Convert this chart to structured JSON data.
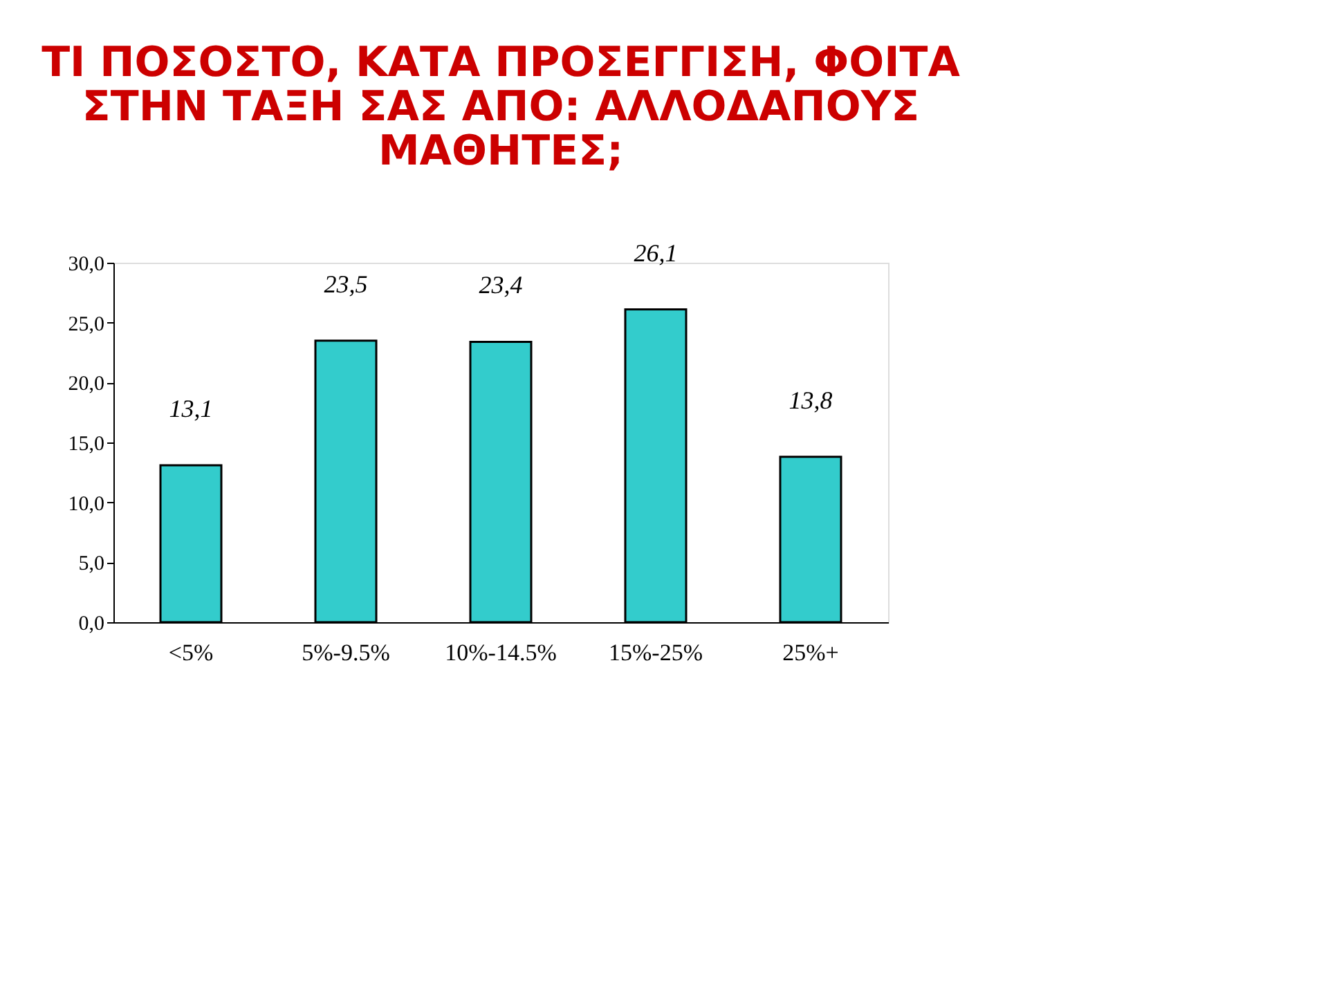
{
  "chart_data": {
    "type": "bar",
    "title": "ΤΙ ΠΟΣΟΣΤΟ, ΚΑΤΑ ΠΡΟΣΕΓΓΙΣΗ, ΦΟΙΤΑ ΣΤΗΝ ΤΑΞΗ ΣΑΣ ΑΠΟ: ΑΛΛΟΔΑΠΟΥΣ ΜΑΘΗΤΕΣ;",
    "categories": [
      "<5%",
      "5%-9.5%",
      "10%-14.5%",
      "15%-25%",
      "25%+"
    ],
    "values": [
      13.1,
      23.5,
      23.4,
      26.1,
      13.8
    ],
    "value_labels": [
      "13,1",
      "23,5",
      "23,4",
      "26,1",
      "13,8"
    ],
    "color": "#33cccc",
    "ylim": [
      0,
      30
    ],
    "yticks": [
      {
        "value": 0,
        "label": "0,0"
      },
      {
        "value": 5,
        "label": "5,0"
      },
      {
        "value": 10,
        "label": "10,0"
      },
      {
        "value": 15,
        "label": "15,0"
      },
      {
        "value": 20,
        "label": "20,0"
      },
      {
        "value": 25,
        "label": "25,0"
      },
      {
        "value": 30,
        "label": "30,0"
      }
    ],
    "grid": false
  }
}
